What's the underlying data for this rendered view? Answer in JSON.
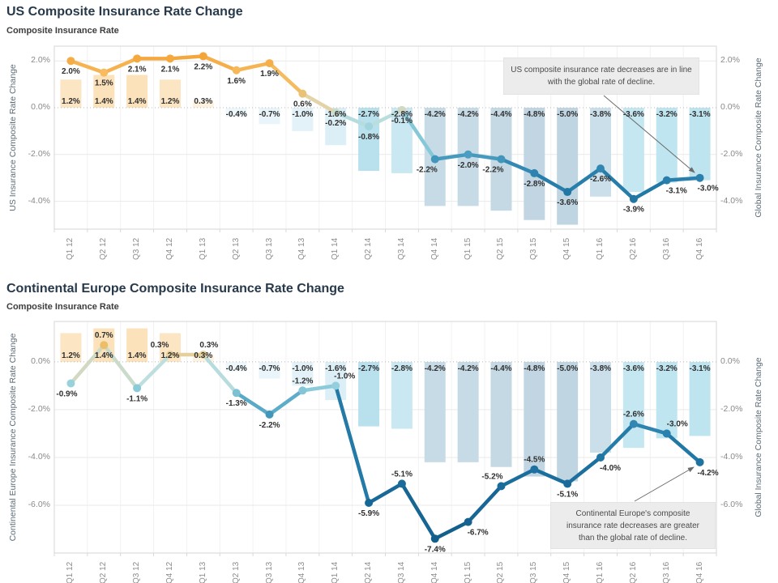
{
  "chart_data": [
    {
      "type": "bar+line",
      "title": "US Composite Insurance Rate Change",
      "subtitle": "Composite Insurance Rate",
      "left_axis": "US Insurance Composite Rate Change",
      "right_axis": "Global Insurance Composite Rate Change",
      "categories": [
        "Q1 12",
        "Q2 12",
        "Q3 12",
        "Q4 12",
        "Q1 13",
        "Q2 13",
        "Q3 13",
        "Q4 13",
        "Q1 14",
        "Q2 14",
        "Q3 14",
        "Q4 14",
        "Q1 15",
        "Q2 15",
        "Q3 15",
        "Q4 15",
        "Q1 16",
        "Q2 16",
        "Q3 16",
        "Q4 16"
      ],
      "ylim": [
        -5.19,
        2.63
      ],
      "yticks": {
        "values": [
          2,
          0,
          -2,
          -4
        ],
        "labels": [
          "2.0%",
          "0.0%",
          "-2.0%",
          "-4.0%"
        ]
      },
      "grid": true,
      "legend": "none",
      "series": [
        {
          "name": "Global Insurance Composite Rate Change",
          "kind": "bar",
          "values": [
            1.2,
            1.4,
            1.4,
            1.2,
            0.3,
            -0.4,
            -0.7,
            -1.0,
            -1.6,
            -2.7,
            -2.8,
            -4.2,
            -4.2,
            -4.4,
            -4.8,
            -5.0,
            -3.8,
            -3.6,
            -3.2,
            -3.1
          ],
          "colors": [
            "#fbe5c2",
            "#fbe2ba",
            "#fbe2ba",
            "#fbe5c2",
            "#fdf2e0",
            "#eef7fb",
            "#e9f5fa",
            "#e3f2f9",
            "#dceff7",
            "#b9e0ed",
            "#c9e8f2",
            "#c7dbe6",
            "#c7dbe6",
            "#c4d9e4",
            "#c1d6e2",
            "#bfd5e1",
            "#cadfe9",
            "#c4e7f1",
            "#bfe5f0",
            "#bde4ef"
          ]
        },
        {
          "name": "US Insurance Composite Rate Change",
          "kind": "line",
          "values": [
            2.0,
            1.5,
            2.1,
            2.1,
            2.2,
            1.6,
            1.9,
            0.6,
            -0.2,
            -0.8,
            -0.1,
            -2.2,
            -2.0,
            -2.2,
            -2.8,
            -3.6,
            -2.6,
            -3.9,
            -3.1,
            -3.0
          ],
          "label_side": [
            "below",
            "below",
            "below",
            "below",
            "below",
            "below",
            "below",
            "below",
            "below",
            "below",
            "below",
            "below",
            "below",
            "below",
            "below",
            "below",
            "below",
            "below",
            "below",
            "below"
          ],
          "label_dx": [
            0,
            0,
            0,
            0,
            0,
            0,
            0,
            0,
            0,
            0,
            0,
            -10,
            0,
            -10,
            0,
            0,
            0,
            0,
            12,
            10
          ]
        }
      ],
      "annotation": "US composite insurance rate decreases are in line with the global rate of decline."
    },
    {
      "type": "bar+line",
      "title": "Continental Europe Composite Insurance Rate Change",
      "subtitle": "Composite Insurance Rate",
      "left_axis": "Continental Europe Insurance Composite Rate Change",
      "right_axis": "Global Insurance Composite Rate Change",
      "categories": [
        "Q1 12",
        "Q2 12",
        "Q3 12",
        "Q4 12",
        "Q1 13",
        "Q2 13",
        "Q3 13",
        "Q4 13",
        "Q1 14",
        "Q2 14",
        "Q3 14",
        "Q4 14",
        "Q1 15",
        "Q2 15",
        "Q3 15",
        "Q4 15",
        "Q1 16",
        "Q2 16",
        "Q3 16",
        "Q4 16"
      ],
      "ylim": [
        -8.0,
        1.69
      ],
      "yticks": {
        "values": [
          0,
          -2,
          -4,
          -6
        ],
        "labels": [
          "0.0%",
          "-2.0%",
          "-4.0%",
          "-6.0%"
        ]
      },
      "grid": true,
      "legend": "none",
      "series": [
        {
          "name": "Global Insurance Composite Rate Change",
          "kind": "bar",
          "values": [
            1.2,
            1.4,
            1.4,
            1.2,
            0.3,
            -0.4,
            -0.7,
            -1.0,
            -1.6,
            -2.7,
            -2.8,
            -4.2,
            -4.2,
            -4.4,
            -4.8,
            -5.0,
            -3.8,
            -3.6,
            -3.2,
            -3.1
          ],
          "colors": [
            "#fbe5c2",
            "#fbe2ba",
            "#fbe2ba",
            "#fbe5c2",
            "#fdf2e0",
            "#eef7fb",
            "#e9f5fa",
            "#e3f2f9",
            "#dceff7",
            "#b9e0ed",
            "#c9e8f2",
            "#c7dbe6",
            "#c7dbe6",
            "#c4d9e4",
            "#c1d6e2",
            "#bfd5e1",
            "#cadfe9",
            "#c4e7f1",
            "#bfe5f0",
            "#bde4ef"
          ]
        },
        {
          "name": "Continental Europe Insurance Composite Rate Change",
          "kind": "line",
          "values": [
            -0.9,
            0.7,
            -1.1,
            0.3,
            0.3,
            -1.3,
            -2.2,
            -1.2,
            -1.0,
            -5.9,
            -5.1,
            -7.4,
            -6.7,
            -5.2,
            -4.5,
            -5.1,
            -4.0,
            -2.6,
            -3.0,
            -4.2
          ],
          "label_side": [
            "below",
            "above",
            "below",
            "above",
            "above",
            "below",
            "below",
            "above",
            "above",
            "below",
            "above",
            "below",
            "below",
            "above",
            "above",
            "below",
            "below",
            "above",
            "above",
            "below"
          ],
          "label_dx": [
            -5,
            0,
            0,
            -13,
            7,
            0,
            0,
            0,
            11,
            0,
            0,
            0,
            12,
            -11,
            0,
            0,
            12,
            0,
            13,
            10
          ]
        }
      ],
      "annotation": "Continental Europe's composite insurance rate decreases are greater than the global rate of decline."
    }
  ],
  "colors": {
    "grid": "#e9e9e9",
    "zero_line": "#b8b8b8",
    "frame": "#d6d6d6",
    "label": "#2f2f2f",
    "arrow": "#6b6b6b",
    "annotation_bg": "#ececec"
  }
}
